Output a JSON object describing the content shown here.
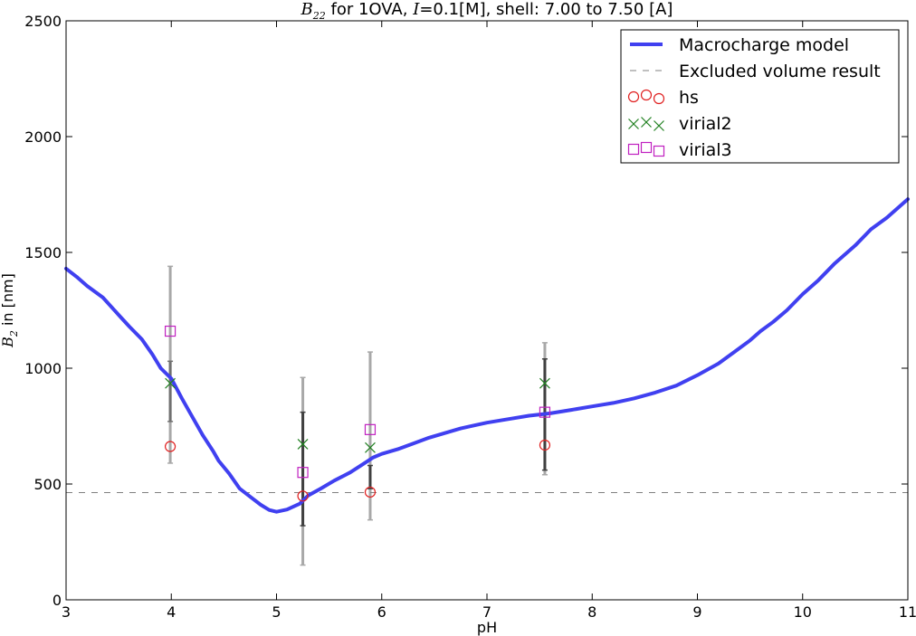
{
  "chart_data": {
    "type": "line",
    "title": {
      "sym": "B",
      "sub": "22",
      "part1": " for 1OVA, ",
      "ivar": "I",
      "ival": "=0.1",
      "part2": "[M], shell: 7.00 to 7.50 [A]"
    },
    "xlabel": "pH",
    "ylabel": {
      "sym": "B",
      "sub": "2",
      "rest": " in [nm]"
    },
    "xlim": [
      3,
      11
    ],
    "ylim": [
      0,
      2500
    ],
    "xticks": [
      3,
      4,
      5,
      6,
      7,
      8,
      9,
      10,
      11
    ],
    "yticks": [
      0,
      500,
      1000,
      1500,
      2000,
      2500
    ],
    "legend_position": "top-right",
    "grid": false,
    "series": [
      {
        "name": "Macrocharge model",
        "kind": "line",
        "color": "#4040f0",
        "x": [
          3.0,
          3.1,
          3.2,
          3.35,
          3.5,
          3.6,
          3.72,
          3.82,
          3.9,
          4.0,
          4.1,
          4.2,
          4.3,
          4.4,
          4.45,
          4.55,
          4.65,
          4.75,
          4.85,
          4.93,
          5.0,
          5.1,
          5.22,
          5.3,
          5.42,
          5.55,
          5.7,
          5.82,
          5.92,
          6.0,
          6.15,
          6.3,
          6.45,
          6.6,
          6.75,
          6.9,
          7.0,
          7.2,
          7.4,
          7.6,
          7.8,
          8.0,
          8.2,
          8.4,
          8.6,
          8.8,
          9.0,
          9.2,
          9.35,
          9.5,
          9.6,
          9.72,
          9.85,
          10.0,
          10.15,
          10.3,
          10.5,
          10.65,
          10.8,
          10.95,
          11.0
        ],
        "y": [
          1430,
          1395,
          1355,
          1305,
          1230,
          1180,
          1125,
          1060,
          1000,
          955,
          870,
          790,
          710,
          640,
          600,
          545,
          480,
          445,
          410,
          388,
          380,
          390,
          415,
          450,
          480,
          515,
          550,
          585,
          615,
          630,
          650,
          675,
          700,
          720,
          740,
          755,
          765,
          780,
          795,
          805,
          820,
          835,
          850,
          870,
          895,
          925,
          970,
          1020,
          1070,
          1120,
          1160,
          1200,
          1250,
          1320,
          1380,
          1450,
          1530,
          1600,
          1650,
          1710,
          1730
        ]
      },
      {
        "name": "Excluded volume result",
        "kind": "dashed",
        "color": "#808080",
        "x": [
          3,
          11
        ],
        "y": [
          463,
          463
        ]
      },
      {
        "name": "hs",
        "kind": "marker",
        "marker": "circle",
        "color": "#e02020",
        "x": [
          3.99,
          5.25,
          5.89,
          7.55
        ],
        "y": [
          662,
          448,
          465,
          668
        ]
      },
      {
        "name": "virial2",
        "kind": "marker",
        "marker": "x",
        "color": "#208020",
        "x": [
          3.99,
          5.25,
          5.89,
          7.55
        ],
        "y": [
          935,
          672,
          657,
          935
        ]
      },
      {
        "name": "virial3",
        "kind": "marker",
        "marker": "square",
        "color": "#c020c0",
        "x": [
          3.99,
          5.25,
          5.89,
          7.55
        ],
        "y": [
          1160,
          550,
          735,
          810
        ]
      }
    ],
    "error_bars": [
      {
        "x": 3.99,
        "lo": 590,
        "hi": 1440,
        "color": "#a8a8a8"
      },
      {
        "x": 3.99,
        "lo": 770,
        "hi": 1030,
        "color": "#707070"
      },
      {
        "x": 5.25,
        "lo": 150,
        "hi": 960,
        "color": "#a8a8a8"
      },
      {
        "x": 5.25,
        "lo": 320,
        "hi": 810,
        "color": "#404040"
      },
      {
        "x": 5.89,
        "lo": 345,
        "hi": 1070,
        "color": "#a8a8a8"
      },
      {
        "x": 5.89,
        "lo": 480,
        "hi": 580,
        "color": "#404040"
      },
      {
        "x": 7.55,
        "lo": 540,
        "hi": 1110,
        "color": "#a8a8a8"
      },
      {
        "x": 7.55,
        "lo": 560,
        "hi": 1040,
        "color": "#404040"
      }
    ]
  }
}
